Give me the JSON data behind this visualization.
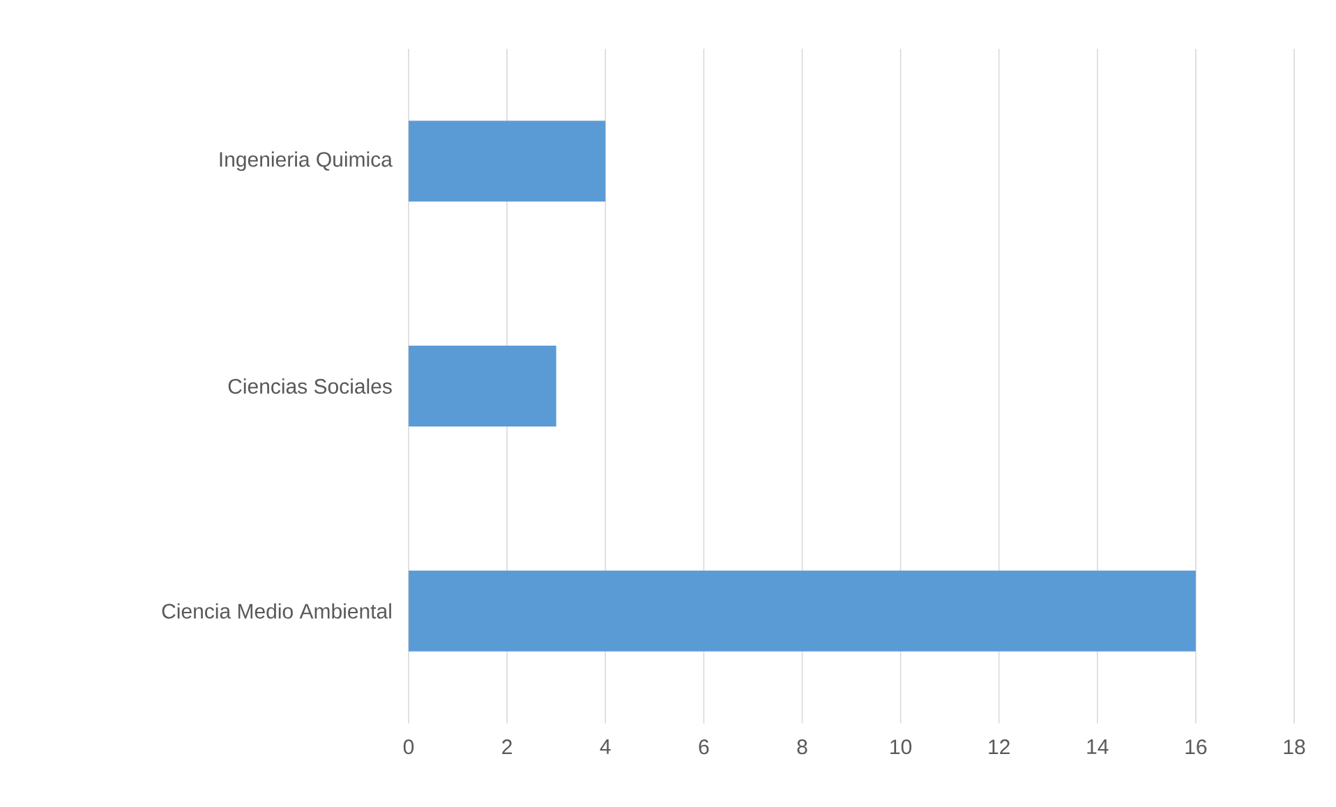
{
  "chart_data": {
    "type": "bar",
    "orientation": "horizontal",
    "categories": [
      "Ingenieria Quimica",
      "Ciencias Sociales",
      "Ciencia Medio Ambiental"
    ],
    "values": [
      4,
      3,
      16
    ],
    "color": "#5b9bd5",
    "xlim": [
      0,
      18
    ],
    "xticks": [
      0,
      2,
      4,
      6,
      8,
      10,
      12,
      14,
      16,
      18
    ],
    "grid": "x"
  }
}
